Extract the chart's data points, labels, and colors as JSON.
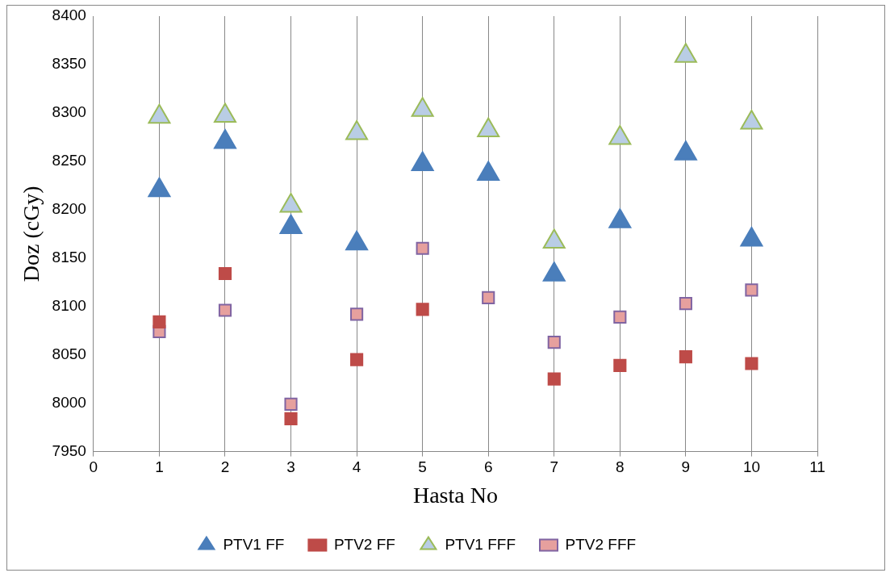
{
  "chart_data": {
    "type": "scatter",
    "xlabel": "Hasta No",
    "ylabel": "Doz (cGy)",
    "x": [
      1,
      2,
      3,
      4,
      5,
      6,
      7,
      8,
      9,
      10
    ],
    "xlim": [
      0,
      11
    ],
    "xticks": [
      0,
      1,
      2,
      3,
      4,
      5,
      6,
      7,
      8,
      9,
      10,
      11
    ],
    "ylim": [
      7950,
      8400
    ],
    "yticks": [
      7950,
      8000,
      8050,
      8100,
      8150,
      8200,
      8250,
      8300,
      8350,
      8400
    ],
    "grid": "x",
    "legend": "bottom",
    "series": [
      {
        "name": "PTV1 FF",
        "color": "#4a7ebb",
        "marker": "triangle",
        "values": [
          8220,
          8270,
          8182,
          8165,
          8247,
          8237,
          8133,
          8188,
          8258,
          8169
        ]
      },
      {
        "name": "PTV2 FF",
        "color": "#be4b48",
        "marker": "square",
        "values": [
          8084,
          8134,
          7984,
          8045,
          8097,
          null,
          8025,
          8039,
          8048,
          8041
        ]
      },
      {
        "name": "PTV1 FFF",
        "color": "#b9cde5",
        "marker": "triangle",
        "values": [
          8296,
          8297,
          8204,
          8279,
          8303,
          8282,
          8167,
          8274,
          8359,
          8290
        ]
      },
      {
        "name": "PTV2 FFF",
        "color": "#e6a09e",
        "marker": "square",
        "values": [
          8074,
          8096,
          7999,
          8092,
          8160,
          8109,
          8063,
          8089,
          8103,
          8117
        ]
      }
    ]
  }
}
